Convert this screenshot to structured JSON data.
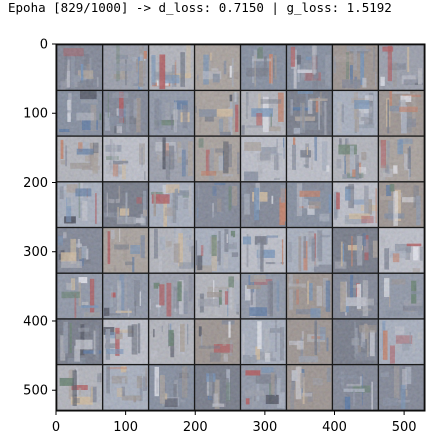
{
  "chart_data": {
    "type": "heatmap",
    "title": "Epoha [829/1000] -> d_loss: 0.7150 | g_loss: 1.5192",
    "xlabel": "",
    "ylabel": "",
    "xlim": [
      0,
      530
    ],
    "ylim": [
      530,
      0
    ],
    "x_ticks": [
      0,
      100,
      200,
      300,
      400,
      500
    ],
    "y_ticks": [
      0,
      100,
      200,
      300,
      400,
      500
    ],
    "grid": false,
    "image_grid": {
      "rows": 8,
      "cols": 8,
      "tile_size": 64,
      "padding": 2
    }
  }
}
